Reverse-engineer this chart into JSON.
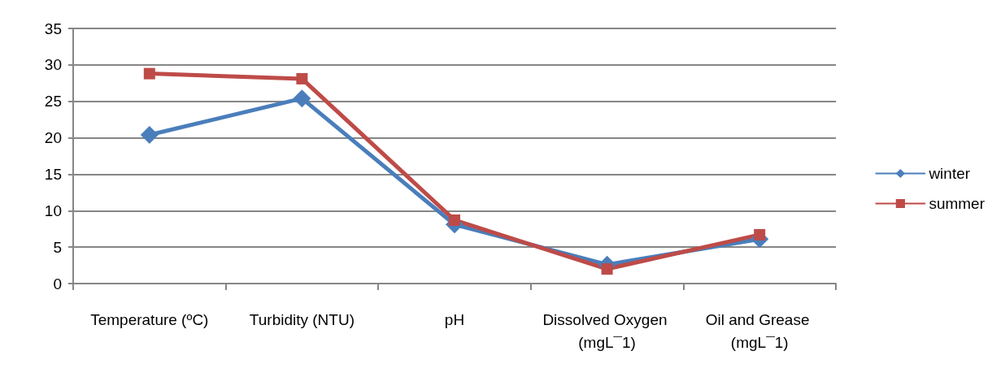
{
  "chart_data": {
    "type": "line",
    "categories": [
      "Temperature (ºC)",
      "Turbidity (NTU)",
      "pH",
      "Dissolved Oxygen (mgL¯1)",
      "Oil and Grease (mgL¯1)"
    ],
    "series": [
      {
        "name": "winter",
        "color": "#4a7ebb",
        "marker": "diamond",
        "values": [
          20.4,
          25.4,
          8.1,
          2.6,
          6.1
        ]
      },
      {
        "name": "summer",
        "color": "#be4b48",
        "marker": "square",
        "values": [
          28.8,
          28.1,
          8.7,
          2.0,
          6.7
        ]
      }
    ],
    "ylim": [
      0,
      35
    ],
    "yticks": [
      0,
      5,
      10,
      15,
      20,
      25,
      30,
      35
    ],
    "grid": "y",
    "legend": "right",
    "line_style": "solid"
  }
}
